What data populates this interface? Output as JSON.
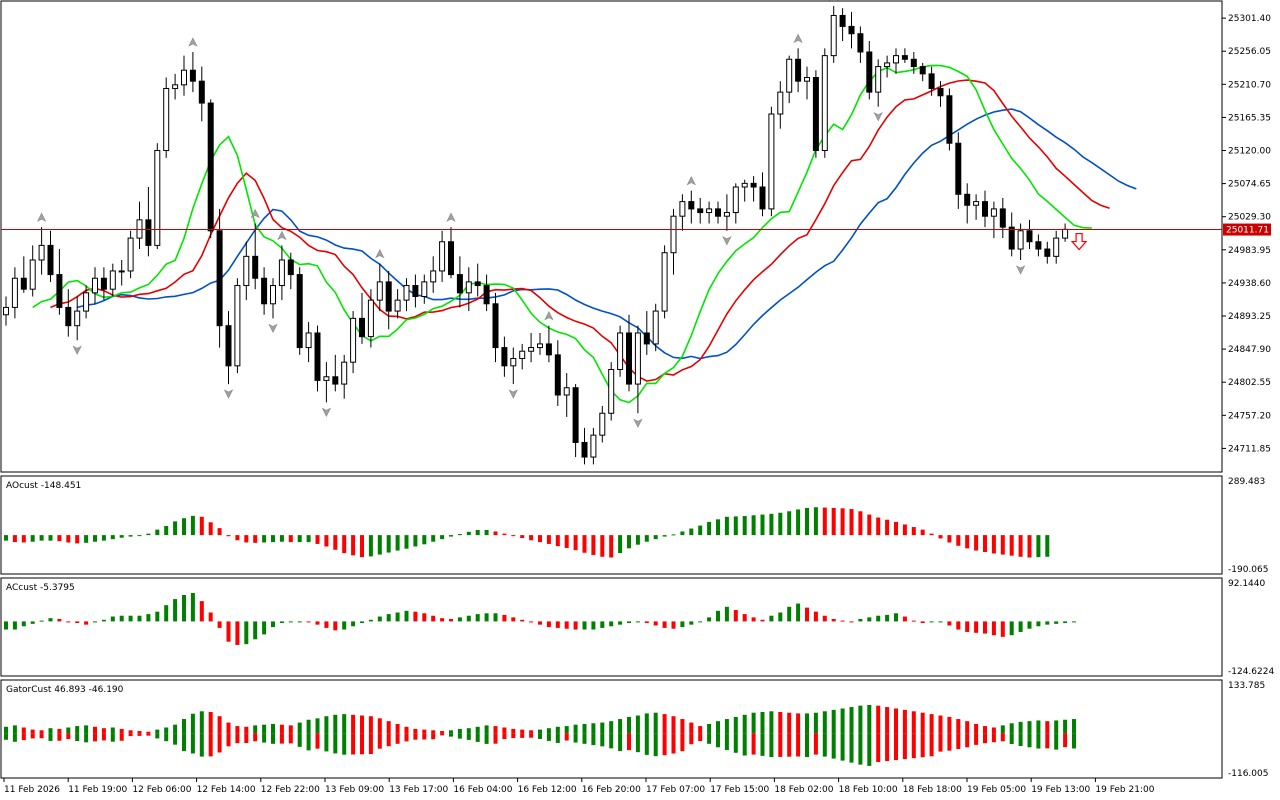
{
  "colors": {
    "background": "#ffffff",
    "frame": "#000000",
    "up_candle_fill": "#ffffff",
    "down_candle_fill": "#000000",
    "green_ma": "#00e600",
    "red_ma": "#e60000",
    "blue_ma": "#0050c8",
    "fractal": "#a0a0a0",
    "hist_up": "#008000",
    "hist_down": "#ff0000",
    "current_price_line": "#cc0000",
    "signal_arrow": "#ff0000"
  },
  "price_axis": {
    "ticks": [
      "25301.40",
      "25256.05",
      "25210.70",
      "25165.35",
      "25120.00",
      "25074.65",
      "25029.30",
      "24983.95",
      "24938.60",
      "24893.25",
      "24847.90",
      "24802.55",
      "24757.20",
      "24711.85"
    ],
    "min": 24685,
    "max": 25318,
    "current_price": "25011.71"
  },
  "time_axis": {
    "labels": [
      "11 Feb 2026",
      "11 Feb 19:00",
      "12 Feb 06:00",
      "12 Feb 14:00",
      "12 Feb 22:00",
      "13 Feb 09:00",
      "13 Feb 17:00",
      "16 Feb 04:00",
      "16 Feb 12:00",
      "16 Feb 20:00",
      "17 Feb 07:00",
      "17 Feb 15:00",
      "18 Feb 02:00",
      "18 Feb 10:00",
      "18 Feb 18:00",
      "19 Feb 05:00",
      "19 Feb 13:00",
      "19 Feb 21:00"
    ]
  },
  "indicators": {
    "ao": {
      "label": "AOcust -148.451",
      "max_label": "289.483",
      "min_label": "-190.065",
      "max": 289.483,
      "min": -190.065
    },
    "ac": {
      "label": "ACcust -5.3795",
      "max_label": "92.1440",
      "min_label": "-124.6224",
      "max": 92.144,
      "min": -124.6224
    },
    "gator": {
      "label": "GatorCust 46.893 -46.190",
      "max_label": "133.785",
      "min_label": "-116.005",
      "max": 133.785,
      "min": -116.005
    }
  },
  "chart_data": [
    {
      "type": "candlestick",
      "title": "",
      "ylim": [
        24685,
        25318
      ],
      "candles": [
        [
          24895,
          24920,
          24880,
          24905
        ],
        [
          24905,
          24960,
          24890,
          24945
        ],
        [
          24945,
          24975,
          24925,
          24930
        ],
        [
          24930,
          24990,
          24920,
          24970
        ],
        [
          24970,
          25015,
          24950,
          24990
        ],
        [
          24990,
          25010,
          24940,
          24950
        ],
        [
          24950,
          24985,
          24895,
          24905
        ],
        [
          24905,
          24930,
          24865,
          24880
        ],
        [
          24880,
          24920,
          24860,
          24900
        ],
        [
          24900,
          24935,
          24890,
          24925
        ],
        [
          24925,
          24960,
          24910,
          24945
        ],
        [
          24945,
          24960,
          24915,
          24930
        ],
        [
          24930,
          24965,
          24920,
          24955
        ],
        [
          24955,
          24970,
          24935,
          24955
        ],
        [
          24955,
          25010,
          24945,
          25000
        ],
        [
          25000,
          25050,
          24985,
          25025
        ],
        [
          25025,
          25070,
          24975,
          24990
        ],
        [
          24990,
          25130,
          24985,
          25120
        ],
        [
          25120,
          25220,
          25110,
          25205
        ],
        [
          25205,
          25225,
          25190,
          25210
        ],
        [
          25210,
          25250,
          25195,
          25230
        ],
        [
          25230,
          25255,
          25200,
          25215
        ],
        [
          25215,
          25235,
          25160,
          25185
        ],
        [
          25185,
          25190,
          25000,
          25010
        ],
        [
          25010,
          25040,
          24850,
          24880
        ],
        [
          24880,
          24900,
          24800,
          24825
        ],
        [
          24825,
          24945,
          24815,
          24935
        ],
        [
          24935,
          24995,
          24915,
          24975
        ],
        [
          24975,
          25020,
          24930,
          24945
        ],
        [
          24945,
          24960,
          24895,
          24910
        ],
        [
          24910,
          24945,
          24890,
          24935
        ],
        [
          24935,
          24990,
          24915,
          24970
        ],
        [
          24970,
          24980,
          24930,
          24950
        ],
        [
          24950,
          24960,
          24840,
          24850
        ],
        [
          24850,
          24885,
          24830,
          24870
        ],
        [
          24870,
          24880,
          24790,
          24805
        ],
        [
          24805,
          24830,
          24775,
          24810
        ],
        [
          24810,
          24840,
          24790,
          24800
        ],
        [
          24800,
          24840,
          24780,
          24830
        ],
        [
          24830,
          24900,
          24815,
          24890
        ],
        [
          24890,
          24925,
          24855,
          24865
        ],
        [
          24865,
          24930,
          24850,
          24915
        ],
        [
          24915,
          24965,
          24900,
          24940
        ],
        [
          24940,
          24955,
          24875,
          24900
        ],
        [
          24900,
          24930,
          24890,
          24915
        ],
        [
          24915,
          24945,
          24900,
          24935
        ],
        [
          24935,
          24950,
          24905,
          24920
        ],
        [
          24920,
          24950,
          24910,
          24940
        ],
        [
          24940,
          24975,
          24925,
          24955
        ],
        [
          24955,
          25010,
          24940,
          24995
        ],
        [
          24995,
          25015,
          24945,
          24950
        ],
        [
          24950,
          24975,
          24905,
          24925
        ],
        [
          24925,
          24960,
          24900,
          24940
        ],
        [
          24940,
          24965,
          24920,
          24935
        ],
        [
          24935,
          24950,
          24900,
          24910
        ],
        [
          24910,
          24925,
          24830,
          24850
        ],
        [
          24850,
          24865,
          24810,
          24825
        ],
        [
          24825,
          24850,
          24800,
          24835
        ],
        [
          24835,
          24855,
          24820,
          24845
        ],
        [
          24845,
          24870,
          24830,
          24850
        ],
        [
          24850,
          24870,
          24840,
          24855
        ],
        [
          24855,
          24880,
          24830,
          24840
        ],
        [
          24840,
          24860,
          24770,
          24785
        ],
        [
          24785,
          24815,
          24755,
          24795
        ],
        [
          24795,
          24800,
          24700,
          24720
        ],
        [
          24720,
          24740,
          24690,
          24700
        ],
        [
          24700,
          24740,
          24690,
          24730
        ],
        [
          24730,
          24770,
          24720,
          24760
        ],
        [
          24760,
          24830,
          24750,
          24820
        ],
        [
          24820,
          24880,
          24810,
          24870
        ],
        [
          24870,
          24895,
          24790,
          24800
        ],
        [
          24800,
          24880,
          24760,
          24870
        ],
        [
          24870,
          24900,
          24840,
          24855
        ],
        [
          24855,
          24910,
          24845,
          24900
        ],
        [
          24900,
          24990,
          24890,
          24980
        ],
        [
          24980,
          25040,
          24950,
          25030
        ],
        [
          25030,
          25060,
          25010,
          25050
        ],
        [
          25050,
          25065,
          25020,
          25040
        ],
        [
          25040,
          25055,
          25020,
          25035
        ],
        [
          25035,
          25050,
          25020,
          25040
        ],
        [
          25040,
          25050,
          25020,
          25030
        ],
        [
          25030,
          25060,
          25010,
          25035
        ],
        [
          25035,
          25075,
          25020,
          25070
        ],
        [
          25070,
          25080,
          25050,
          25075
        ],
        [
          25075,
          25085,
          25050,
          25070
        ],
        [
          25070,
          25090,
          25030,
          25040
        ],
        [
          25040,
          25180,
          25030,
          25170
        ],
        [
          25170,
          25215,
          25150,
          25200
        ],
        [
          25200,
          25250,
          25185,
          25245
        ],
        [
          25245,
          25260,
          25200,
          25215
        ],
        [
          25215,
          25235,
          25190,
          25220
        ],
        [
          25220,
          25230,
          25110,
          25120
        ],
        [
          25120,
          25260,
          25110,
          25250
        ],
        [
          25250,
          25318,
          25240,
          25305
        ],
        [
          25305,
          25315,
          25270,
          25290
        ],
        [
          25290,
          25310,
          25260,
          25280
        ],
        [
          25280,
          25290,
          25240,
          25255
        ],
        [
          25255,
          25270,
          25190,
          25200
        ],
        [
          25200,
          25245,
          25180,
          25235
        ],
        [
          25235,
          25250,
          25220,
          25240
        ],
        [
          25240,
          25260,
          25225,
          25250
        ],
        [
          25250,
          25260,
          25240,
          25245
        ],
        [
          25245,
          25255,
          25225,
          25235
        ],
        [
          25235,
          25240,
          25215,
          25225
        ],
        [
          25225,
          25235,
          25195,
          25205
        ],
        [
          25205,
          25215,
          25180,
          25195
        ],
        [
          25195,
          25205,
          25120,
          25130
        ],
        [
          25130,
          25145,
          25040,
          25060
        ],
        [
          25060,
          25075,
          25020,
          25045
        ],
        [
          25045,
          25060,
          25025,
          25050
        ],
        [
          25050,
          25065,
          25015,
          25030
        ],
        [
          25030,
          25050,
          25000,
          25040
        ],
        [
          25040,
          25055,
          25000,
          25015
        ],
        [
          25015,
          25035,
          24975,
          24985
        ],
        [
          24985,
          25020,
          24970,
          25010
        ],
        [
          25010,
          25025,
          24985,
          24995
        ],
        [
          24995,
          25005,
          24975,
          24985
        ],
        [
          24985,
          24995,
          24965,
          24975
        ],
        [
          24975,
          25010,
          24965,
          25000
        ],
        [
          25000,
          25020,
          24995,
          25012
        ]
      ]
    },
    {
      "type": "histogram",
      "name": "AOcust",
      "ylim": [
        -190.065,
        289.483
      ],
      "values": [
        -30,
        -38,
        -40,
        -36,
        -30,
        -30,
        -33,
        -40,
        -45,
        -42,
        -36,
        -30,
        -22,
        -14,
        -8,
        -2,
        8,
        30,
        50,
        75,
        92,
        105,
        100,
        70,
        38,
        -6,
        -28,
        -40,
        -42,
        -40,
        -38,
        -36,
        -38,
        -38,
        -38,
        -48,
        -62,
        -80,
        -98,
        -110,
        -120,
        -116,
        -106,
        -95,
        -84,
        -74,
        -62,
        -50,
        -36,
        -22,
        -8,
        6,
        18,
        28,
        28,
        20,
        8,
        -4,
        -16,
        -28,
        -38,
        -48,
        -60,
        -70,
        -82,
        -96,
        -108,
        -118,
        -122,
        -98,
        -72,
        -52,
        -36,
        -22,
        -8,
        4,
        20,
        36,
        52,
        72,
        86,
        100,
        102,
        104,
        108,
        112,
        116,
        122,
        130,
        140,
        148,
        152,
        150,
        148,
        146,
        142,
        130,
        112,
        96,
        84,
        72,
        58,
        44,
        30,
        8,
        -18,
        -40,
        -58,
        -72,
        -84,
        -92,
        -100,
        -106,
        -112,
        -118,
        -122,
        -120,
        -118
      ]
    },
    {
      "type": "histogram",
      "name": "ACcust",
      "ylim": [
        -124.6224,
        92.144
      ],
      "values": [
        -20,
        -20,
        -12,
        -6,
        2,
        8,
        6,
        0,
        -4,
        -8,
        -2,
        4,
        12,
        14,
        14,
        14,
        18,
        24,
        40,
        55,
        65,
        70,
        50,
        22,
        -16,
        -50,
        -58,
        -56,
        -44,
        -32,
        -14,
        -4,
        0,
        0,
        -2,
        -8,
        -16,
        -22,
        -20,
        -12,
        -4,
        4,
        12,
        18,
        22,
        26,
        24,
        20,
        14,
        8,
        6,
        10,
        14,
        18,
        20,
        20,
        16,
        10,
        4,
        -2,
        -8,
        -14,
        -16,
        -18,
        -20,
        -20,
        -20,
        -16,
        -12,
        -8,
        -4,
        0,
        -4,
        -10,
        -16,
        -18,
        -14,
        -8,
        -2,
        10,
        26,
        36,
        28,
        18,
        10,
        4,
        14,
        22,
        36,
        44,
        34,
        24,
        14,
        6,
        2,
        0,
        6,
        10,
        14,
        16,
        20,
        12,
        2,
        -4,
        -2,
        -2,
        -10,
        -20,
        -26,
        -28,
        -30,
        -34,
        -38,
        -34,
        -26,
        -18,
        -12,
        -8,
        -6,
        -4,
        -2
      ]
    },
    {
      "type": "histogram",
      "name": "GatorCust",
      "ylim": [
        -116.005,
        133.785
      ],
      "upper": [
        18,
        22,
        16,
        10,
        8,
        14,
        12,
        16,
        20,
        22,
        18,
        14,
        16,
        12,
        8,
        6,
        4,
        10,
        16,
        24,
        40,
        55,
        62,
        60,
        48,
        30,
        20,
        18,
        22,
        24,
        26,
        24,
        22,
        30,
        38,
        42,
        48,
        52,
        54,
        52,
        50,
        48,
        42,
        34,
        26,
        18,
        12,
        10,
        8,
        6,
        8,
        12,
        14,
        18,
        22,
        20,
        16,
        12,
        10,
        8,
        10,
        14,
        18,
        20,
        24,
        26,
        28,
        30,
        34,
        40,
        46,
        50,
        56,
        58,
        54,
        48,
        40,
        30,
        20,
        26,
        34,
        40,
        46,
        52,
        58,
        60,
        62,
        60,
        58,
        56,
        56,
        58,
        62,
        66,
        70,
        74,
        78,
        80,
        78,
        74,
        70,
        66,
        62,
        58,
        54,
        50,
        46,
        40,
        34,
        26,
        20,
        16,
        22,
        28,
        32,
        34,
        36,
        34,
        36,
        38,
        40
      ]
    }
  ]
}
